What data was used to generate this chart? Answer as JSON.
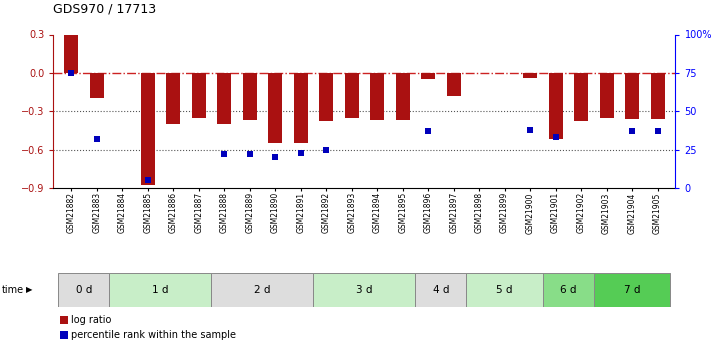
{
  "title": "GDS970 / 17713",
  "samples": [
    "GSM21882",
    "GSM21883",
    "GSM21884",
    "GSM21885",
    "GSM21886",
    "GSM21887",
    "GSM21888",
    "GSM21889",
    "GSM21890",
    "GSM21891",
    "GSM21892",
    "GSM21893",
    "GSM21894",
    "GSM21895",
    "GSM21896",
    "GSM21897",
    "GSM21898",
    "GSM21899",
    "GSM21900",
    "GSM21901",
    "GSM21902",
    "GSM21903",
    "GSM21904",
    "GSM21905"
  ],
  "log_ratio": [
    0.3,
    -0.2,
    0.0,
    -0.88,
    -0.4,
    -0.35,
    -0.4,
    -0.37,
    -0.55,
    -0.55,
    -0.38,
    -0.35,
    -0.37,
    -0.37,
    -0.05,
    -0.18,
    0.0,
    0.0,
    -0.04,
    -0.52,
    -0.38,
    -0.35,
    -0.36,
    -0.36
  ],
  "percentile_rank": [
    75,
    32,
    null,
    5,
    null,
    null,
    22,
    22,
    20,
    23,
    25,
    null,
    null,
    null,
    37,
    null,
    null,
    null,
    38,
    33,
    null,
    null,
    37,
    37
  ],
  "time_groups": [
    {
      "label": "0 d",
      "start": 0,
      "end": 2,
      "color": "#dddddd"
    },
    {
      "label": "1 d",
      "start": 2,
      "end": 6,
      "color": "#c8eec8"
    },
    {
      "label": "2 d",
      "start": 6,
      "end": 10,
      "color": "#dddddd"
    },
    {
      "label": "3 d",
      "start": 10,
      "end": 14,
      "color": "#c8eec8"
    },
    {
      "label": "4 d",
      "start": 14,
      "end": 16,
      "color": "#dddddd"
    },
    {
      "label": "5 d",
      "start": 16,
      "end": 19,
      "color": "#c8eec8"
    },
    {
      "label": "6 d",
      "start": 19,
      "end": 21,
      "color": "#88dd88"
    },
    {
      "label": "7 d",
      "start": 21,
      "end": 24,
      "color": "#55cc55"
    }
  ],
  "ylim": [
    -0.9,
    0.3
  ],
  "yticks_left": [
    -0.9,
    -0.6,
    -0.3,
    0.0,
    0.3
  ],
  "yticks_right": [
    0,
    25,
    50,
    75,
    100
  ],
  "bar_color": "#aa1111",
  "dot_color": "#0000bb",
  "hline_color": "#cc2222",
  "dotted_line_color": "#555555",
  "bar_width": 0.55
}
